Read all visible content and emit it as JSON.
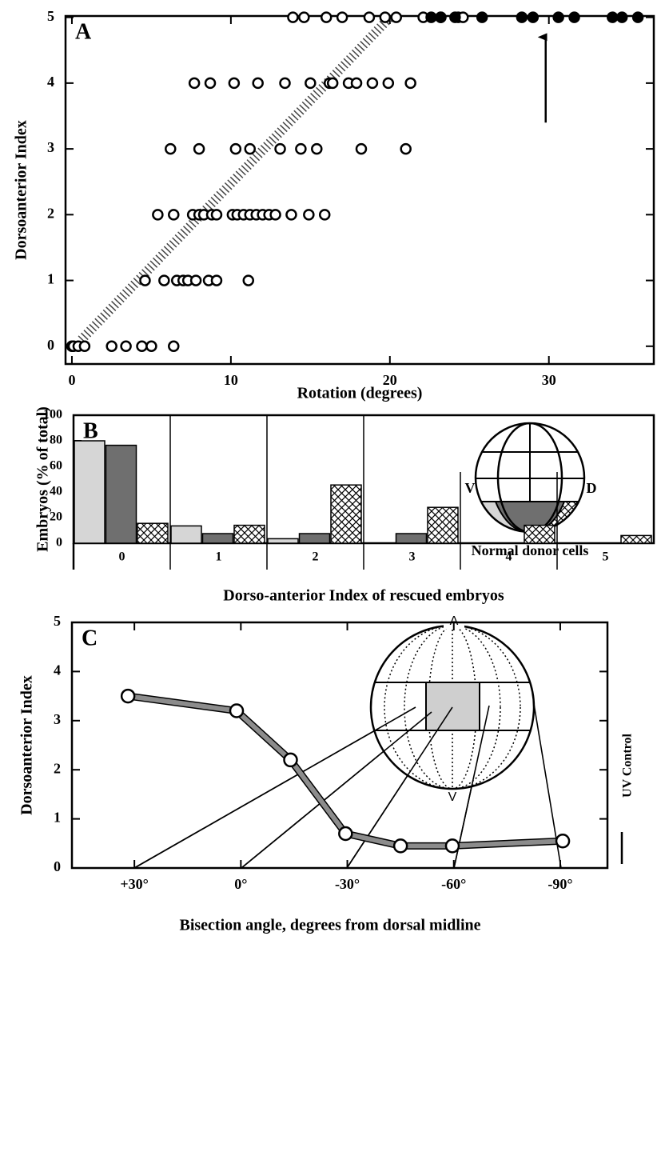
{
  "chart_data": [
    {
      "type": "scatter",
      "panel": "A",
      "xlabel": "Rotation (degrees)",
      "ylabel": "Dorsoanterior Index",
      "xlim": [
        -0.4,
        36.6
      ],
      "ylim": [
        -0.27,
        5.02
      ],
      "xticks": [
        0,
        10,
        20,
        30
      ],
      "yticks": [
        0,
        1,
        2,
        3,
        4,
        5
      ],
      "series": [
        {
          "color": "#000000",
          "fill": "#ffffff",
          "x": [
            0,
            0.1,
            0.4,
            0.8,
            2.5,
            3.4,
            4.4,
            5.0,
            6.4,
            4.6,
            5.8,
            6.6,
            7.0,
            7.3,
            7.8,
            8.6,
            9.1,
            11.1,
            5.4,
            6.4,
            7.6,
            8.0,
            8.3,
            8.8,
            9.1,
            10.1,
            10.4,
            10.8,
            11.2,
            11.6,
            12.0,
            12.4,
            12.8,
            13.8,
            14.9,
            15.9,
            6.2,
            8.0,
            10.3,
            11.2,
            13.1,
            14.4,
            15.4,
            18.2,
            21.0,
            7.7,
            8.7,
            10.2,
            11.7,
            13.4,
            15.0,
            16.2,
            16.4,
            17.4,
            17.9,
            18.9,
            19.9,
            21.3,
            13.9,
            14.6,
            16.0,
            17.0,
            18.7,
            19.7,
            20.4,
            22.1,
            23.2,
            24.3,
            24.6
          ],
          "values": [
            0,
            0,
            0,
            0,
            0,
            0,
            0,
            0,
            0,
            1,
            1,
            1,
            1,
            1,
            1,
            1,
            1,
            1,
            2,
            2,
            2,
            2,
            2,
            2,
            2,
            2,
            2,
            2,
            2,
            2,
            2,
            2,
            2,
            2,
            2,
            2,
            3,
            3,
            3,
            3,
            3,
            3,
            3,
            3,
            3,
            4,
            4,
            4,
            4,
            4,
            4,
            4,
            4,
            4,
            4,
            4,
            4,
            4,
            5,
            5,
            5,
            5,
            5,
            5,
            5,
            5,
            5,
            5,
            5
          ]
        },
        {
          "color": "#000000",
          "fill": "#000000",
          "x": [
            22.6,
            23.2,
            24.1,
            25.8,
            28.3,
            29.0,
            30.6,
            31.6,
            34.0,
            34.6,
            35.6
          ],
          "values": [
            5,
            5,
            5,
            5,
            5,
            5,
            5,
            5,
            5,
            5,
            5
          ]
        }
      ],
      "fit": {
        "x": [
          0.6,
          20
        ],
        "values": [
          0.1,
          5
        ]
      },
      "arrow": {
        "x": 29.8,
        "values": [
          3.4,
          4.7
        ]
      }
    },
    {
      "type": "bar",
      "panel": "B",
      "ylabel": "Embryos (% of total)",
      "xlabel": "Dorso-anterior Index of rescued embryos",
      "categories": [
        "0",
        "1",
        "2",
        "3",
        "4",
        "5"
      ],
      "ylim": [
        0,
        100
      ],
      "yticks": [
        0,
        20,
        40,
        60,
        80,
        100
      ],
      "series": [
        {
          "color": "#d6d6d6",
          "values": [
            80,
            13.5,
            3.5,
            0,
            0,
            0
          ]
        },
        {
          "color": "#6f6f6f",
          "values": [
            76.5,
            7.5,
            7.5,
            7.5,
            0,
            0
          ]
        },
        {
          "color": "#ffffff",
          "hatch": true,
          "values": [
            15.5,
            14,
            45.5,
            28,
            14,
            6
          ]
        }
      ],
      "inset": {
        "left": "V",
        "right": "D",
        "caption": "Normal donor cells"
      }
    },
    {
      "type": "line",
      "panel": "C",
      "ylabel": "Dorsoanterior Index",
      "xlabel": "Bisection angle, degrees from dorsal midline",
      "xlim": [
        47.6,
        -103.3
      ],
      "ylim": [
        0,
        5
      ],
      "xticks": [
        {
          "value": 30,
          "label": "+30°"
        },
        {
          "value": 0,
          "label": "0°"
        },
        {
          "value": -30,
          "label": "-30°"
        },
        {
          "value": -60,
          "label": "-60°"
        },
        {
          "value": -90,
          "label": "-90°"
        }
      ],
      "yticks": [
        0,
        1,
        2,
        3,
        4,
        5
      ],
      "x": [
        31.8,
        1.2,
        -14,
        -29.5,
        -45,
        -59.6,
        -90.7
      ],
      "values": [
        3.5,
        3.2,
        2.2,
        0.7,
        0.45,
        0.45,
        0.55
      ],
      "color": "#8c8c8c",
      "inset": {
        "top": "A",
        "bottom": "V"
      },
      "control_label": "UV Control"
    }
  ]
}
